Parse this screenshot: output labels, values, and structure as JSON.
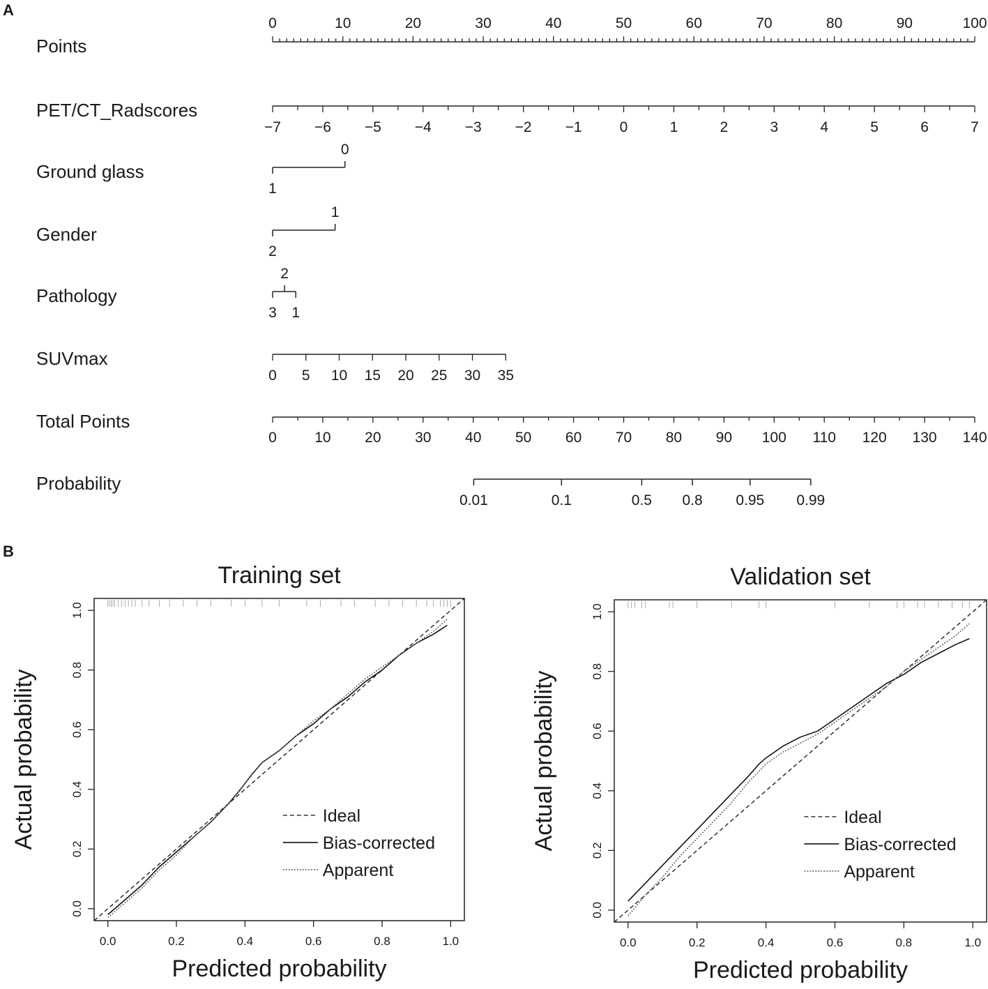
{
  "panel_a_label": "A",
  "panel_b_label": "B",
  "chart_data": [
    {
      "type": "nomogram",
      "rows": [
        {
          "id": "points",
          "label": "Points",
          "axis_range": [
            0,
            100
          ],
          "tick_labels": [
            "0",
            "10",
            "20",
            "30",
            "40",
            "50",
            "60",
            "70",
            "80",
            "90",
            "100"
          ],
          "label_side": "above"
        },
        {
          "id": "radscores",
          "label": "PET/CT_Radscores",
          "tick_labels": [
            "-7",
            "-6",
            "-5",
            "-4",
            "-3",
            "-2",
            "-1",
            "0",
            "1",
            "2",
            "3",
            "4",
            "5",
            "6",
            "7"
          ],
          "points_at_ends": [
            0,
            100
          ],
          "label_side": "below"
        },
        {
          "id": "ground_glass",
          "label": "Ground glass",
          "levels": [
            {
              "label": "1",
              "points": 0,
              "side": "below"
            },
            {
              "label": "0",
              "points": 10.3,
              "side": "above"
            }
          ]
        },
        {
          "id": "gender",
          "label": "Gender",
          "levels": [
            {
              "label": "2",
              "points": 0,
              "side": "below"
            },
            {
              "label": "1",
              "points": 8.9,
              "side": "above"
            }
          ]
        },
        {
          "id": "pathology",
          "label": "Pathology",
          "levels": [
            {
              "label": "3",
              "points": 0,
              "side": "below"
            },
            {
              "label": "2",
              "points": 1.7,
              "side": "above"
            },
            {
              "label": "1",
              "points": 3.3,
              "side": "below"
            }
          ]
        },
        {
          "id": "suvmax",
          "label": "SUVmax",
          "tick_labels": [
            "0",
            "5",
            "10",
            "15",
            "20",
            "25",
            "30",
            "35"
          ],
          "points_at_ends": [
            0,
            33.2
          ],
          "label_side": "below"
        },
        {
          "id": "total_points",
          "label": "Total Points",
          "axis_range": [
            0,
            140
          ],
          "tick_labels": [
            "0",
            "10",
            "20",
            "30",
            "40",
            "50",
            "60",
            "70",
            "80",
            "90",
            "100",
            "110",
            "120",
            "130",
            "140"
          ],
          "label_side": "below"
        },
        {
          "id": "probability",
          "label": "Probability",
          "tick_labels": [
            "0.01",
            "0.1",
            "0.5",
            "0.8",
            "0.95",
            "0.99"
          ],
          "total_points_at": [
            40.1,
            57.6,
            73.6,
            83.7,
            95.2,
            107.3
          ],
          "axis_total_points": [
            40.1,
            107.3
          ],
          "label_side": "below"
        }
      ]
    },
    {
      "type": "line",
      "title": "Training set",
      "xlabel": "Predicted probability",
      "ylabel": "Actual probability",
      "xlim": [
        -0.04,
        1.04
      ],
      "ylim": [
        -0.04,
        1.04
      ],
      "x_ticks": [
        "0.0",
        "0.2",
        "0.4",
        "0.6",
        "0.8",
        "1.0"
      ],
      "y_ticks": [
        "0.0",
        "0.2",
        "0.4",
        "0.6",
        "0.8",
        "1.0"
      ],
      "legend": [
        "Ideal",
        "Bias-corrected",
        "Apparent"
      ],
      "legend_position": "bottom-right",
      "rug": [
        0.0,
        0.005,
        0.01,
        0.015,
        0.02,
        0.03,
        0.04,
        0.05,
        0.06,
        0.07,
        0.08,
        0.1,
        0.12,
        0.15,
        0.18,
        0.22,
        0.26,
        0.3,
        0.36,
        0.4,
        0.45,
        0.5,
        0.58,
        0.62,
        0.68,
        0.72,
        0.78,
        0.82,
        0.86,
        0.9,
        0.93,
        0.95,
        0.97,
        0.98,
        0.99,
        1.0
      ],
      "series": [
        {
          "name": "Ideal",
          "style": "dashed",
          "x": [
            -0.04,
            1.04
          ],
          "y": [
            -0.04,
            1.04
          ]
        },
        {
          "name": "Bias-corrected",
          "style": "solid",
          "x": [
            0.0,
            0.05,
            0.1,
            0.15,
            0.2,
            0.25,
            0.3,
            0.35,
            0.38,
            0.42,
            0.45,
            0.5,
            0.55,
            0.6,
            0.65,
            0.7,
            0.75,
            0.8,
            0.85,
            0.9,
            0.95,
            0.99
          ],
          "y": [
            -0.02,
            0.03,
            0.08,
            0.14,
            0.19,
            0.24,
            0.29,
            0.35,
            0.39,
            0.45,
            0.49,
            0.53,
            0.58,
            0.62,
            0.67,
            0.71,
            0.76,
            0.8,
            0.85,
            0.89,
            0.92,
            0.95
          ]
        },
        {
          "name": "Apparent",
          "style": "dotted",
          "x": [
            0.0,
            0.05,
            0.1,
            0.15,
            0.2,
            0.25,
            0.3,
            0.35,
            0.4,
            0.45,
            0.5,
            0.55,
            0.6,
            0.65,
            0.7,
            0.75,
            0.8,
            0.85,
            0.9,
            0.95,
            0.99
          ],
          "y": [
            -0.03,
            0.02,
            0.07,
            0.13,
            0.18,
            0.24,
            0.29,
            0.35,
            0.42,
            0.49,
            0.53,
            0.58,
            0.63,
            0.67,
            0.72,
            0.77,
            0.81,
            0.85,
            0.89,
            0.93,
            0.97
          ]
        }
      ]
    },
    {
      "type": "line",
      "title": "Validation set",
      "xlabel": "Predicted probability",
      "ylabel": "Actual probability",
      "xlim": [
        -0.04,
        1.04
      ],
      "ylim": [
        -0.04,
        1.04
      ],
      "x_ticks": [
        "0.0",
        "0.2",
        "0.4",
        "0.6",
        "0.8",
        "1.0"
      ],
      "y_ticks": [
        "0.0",
        "0.2",
        "0.4",
        "0.6",
        "0.8",
        "1.0"
      ],
      "legend": [
        "Ideal",
        "Bias-corrected",
        "Apparent"
      ],
      "legend_position": "bottom-right",
      "rug": [
        0.0,
        0.01,
        0.02,
        0.04,
        0.05,
        0.12,
        0.13,
        0.2,
        0.3,
        0.38,
        0.4,
        0.6,
        0.7,
        0.78,
        0.8,
        0.84,
        0.86,
        0.9,
        0.94,
        0.97,
        0.99
      ],
      "series": [
        {
          "name": "Ideal",
          "style": "dashed",
          "x": [
            -0.04,
            1.04
          ],
          "y": [
            -0.04,
            1.04
          ]
        },
        {
          "name": "Bias-corrected",
          "style": "solid",
          "x": [
            0.0,
            0.05,
            0.1,
            0.15,
            0.2,
            0.25,
            0.3,
            0.35,
            0.38,
            0.4,
            0.45,
            0.5,
            0.55,
            0.6,
            0.65,
            0.7,
            0.75,
            0.8,
            0.85,
            0.9,
            0.95,
            0.99
          ],
          "y": [
            0.03,
            0.09,
            0.15,
            0.21,
            0.27,
            0.33,
            0.39,
            0.45,
            0.49,
            0.51,
            0.55,
            0.58,
            0.6,
            0.64,
            0.68,
            0.72,
            0.76,
            0.79,
            0.83,
            0.86,
            0.89,
            0.91
          ]
        },
        {
          "name": "Apparent",
          "style": "dotted",
          "x": [
            0.0,
            0.05,
            0.1,
            0.15,
            0.2,
            0.25,
            0.3,
            0.35,
            0.4,
            0.45,
            0.5,
            0.55,
            0.6,
            0.65,
            0.7,
            0.75,
            0.8,
            0.85,
            0.9,
            0.95,
            0.99
          ],
          "y": [
            -0.02,
            0.05,
            0.11,
            0.18,
            0.24,
            0.3,
            0.36,
            0.43,
            0.49,
            0.53,
            0.56,
            0.59,
            0.63,
            0.67,
            0.71,
            0.75,
            0.8,
            0.84,
            0.88,
            0.92,
            0.96
          ]
        }
      ]
    }
  ]
}
